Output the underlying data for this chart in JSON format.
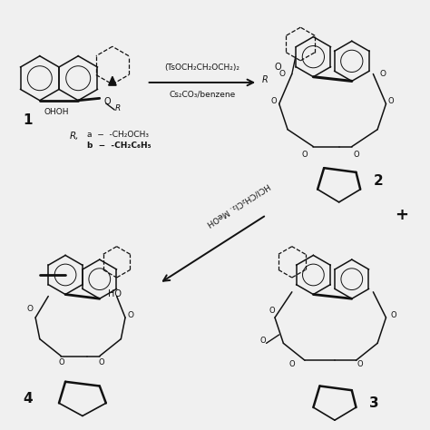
{
  "background_color": "#f0f0f0",
  "reaction1_above": "(TsOCH₂CH₂OCH₂)₂",
  "reaction1_below": "Cs₂CO₃/benzene",
  "reaction2_label": "HCl/CH₂Cl₂. MeOH",
  "compound1_label": "1",
  "compound2_label": "2",
  "compound3_label": "3",
  "compound4_label": "4",
  "R_label": "R,",
  "Ra": "a  −  -CH₂OCH₃",
  "Rb": "b  -  -CH₂C₆H₅",
  "plus_sign": "+",
  "text_color": "#111111",
  "line_color": "#111111"
}
